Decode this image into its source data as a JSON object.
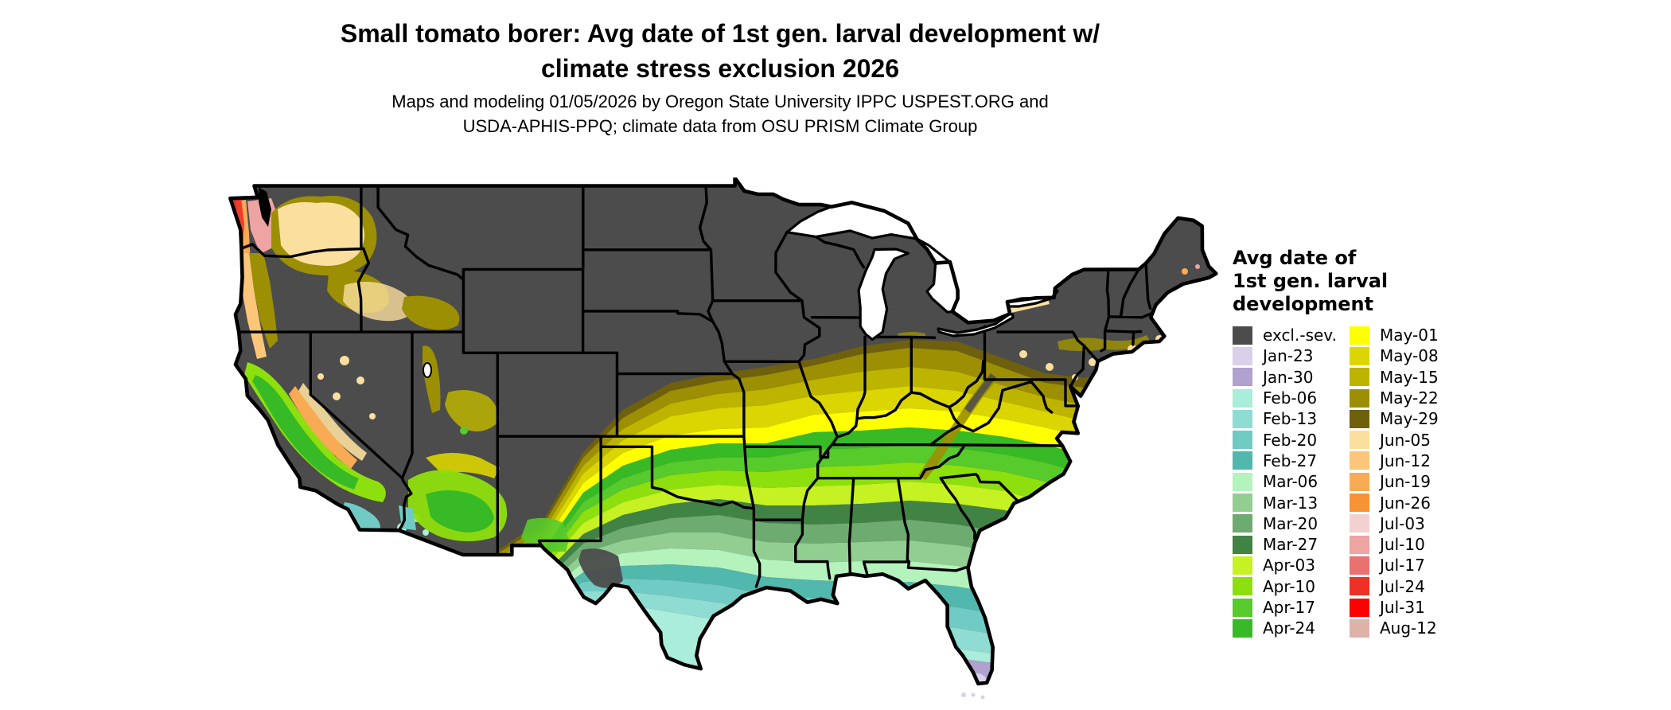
{
  "title": {
    "line1": "Small tomato borer: Avg date of 1st gen. larval development w/",
    "line2": "climate stress exclusion 2026"
  },
  "subtitle": {
    "line1": "Maps and modeling 01/05/2026 by Oregon State University IPPC USPEST.ORG and",
    "line2": "USDA-APHIS-PPQ; climate data from OSU PRISM Climate Group"
  },
  "legend": {
    "title_lines": [
      "Avg date of",
      "1st gen. larval",
      "development"
    ],
    "left": [
      {
        "label": "excl.-sev.",
        "color": "#4c4c4c"
      },
      {
        "label": "Jan-23",
        "color": "#d9d0e9"
      },
      {
        "label": "Jan-30",
        "color": "#b0a1ce"
      },
      {
        "label": "Feb-06",
        "color": "#a9edda"
      },
      {
        "label": "Feb-13",
        "color": "#8edcd2"
      },
      {
        "label": "Feb-20",
        "color": "#70cbc4"
      },
      {
        "label": "Feb-27",
        "color": "#52b7ad"
      },
      {
        "label": "Mar-06",
        "color": "#b5f3bc"
      },
      {
        "label": "Mar-13",
        "color": "#92ce92"
      },
      {
        "label": "Mar-20",
        "color": "#6dab70"
      },
      {
        "label": "Mar-27",
        "color": "#418345"
      },
      {
        "label": "Apr-03",
        "color": "#c6f122"
      },
      {
        "label": "Apr-10",
        "color": "#8edf0e"
      },
      {
        "label": "Apr-17",
        "color": "#57ca2c"
      },
      {
        "label": "Apr-24",
        "color": "#37ba25"
      }
    ],
    "right": [
      {
        "label": "May-01",
        "color": "#ffff00"
      },
      {
        "label": "May-08",
        "color": "#dbd501"
      },
      {
        "label": "May-15",
        "color": "#bdb400"
      },
      {
        "label": "May-22",
        "color": "#9c8f03"
      },
      {
        "label": "May-29",
        "color": "#6f600e"
      },
      {
        "label": "Jun-05",
        "color": "#fbdf9e"
      },
      {
        "label": "Jun-12",
        "color": "#fbc67a"
      },
      {
        "label": "Jun-19",
        "color": "#f9aa55"
      },
      {
        "label": "Jun-26",
        "color": "#f79334"
      },
      {
        "label": "Jul-03",
        "color": "#f3d1d1"
      },
      {
        "label": "Jul-10",
        "color": "#eda4a2"
      },
      {
        "label": "Jul-17",
        "color": "#e97170"
      },
      {
        "label": "Jul-24",
        "color": "#ee3127"
      },
      {
        "label": "Jul-31",
        "color": "#fe0000"
      },
      {
        "label": "Aug-12",
        "color": "#dfb2a9"
      }
    ]
  },
  "map": {
    "region": "Contiguous United States",
    "excluded_fill_label": "excl.-sev.",
    "water_color": "#ffffff",
    "border_color": "#000000"
  }
}
